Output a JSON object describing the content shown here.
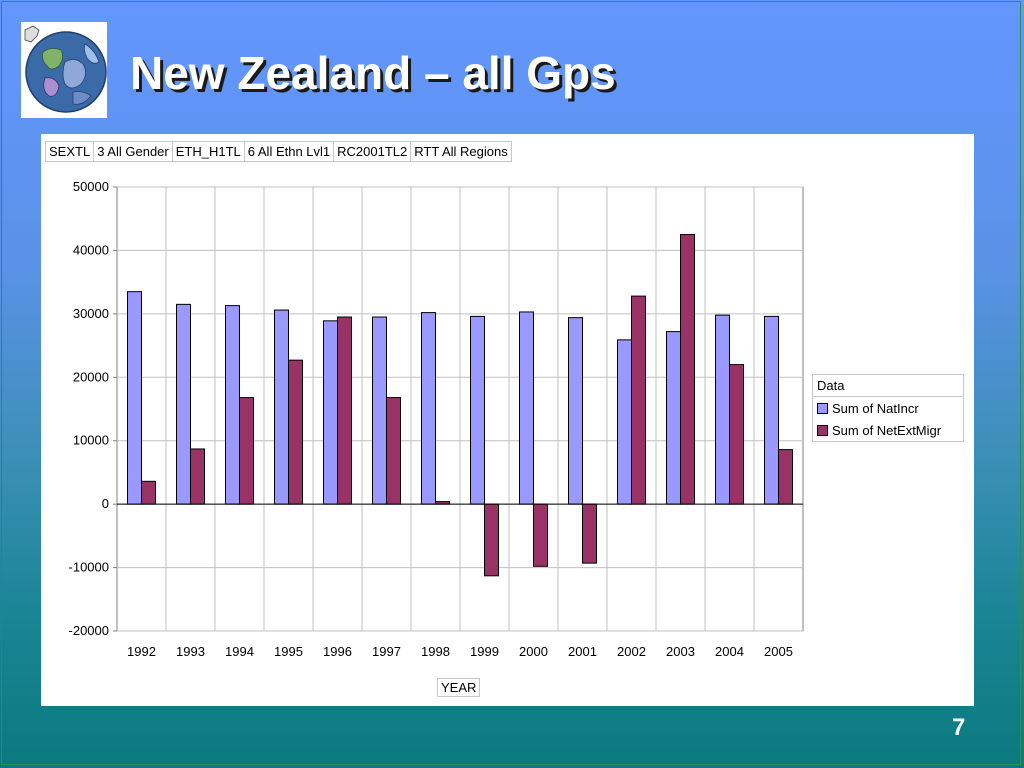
{
  "slide": {
    "title": "New Zealand – all Gps",
    "page_number": "7"
  },
  "filters": [
    "SEXTL",
    "3 All Gender",
    "ETH_H1TL",
    "6 All Ethn Lvl1",
    "RC2001TL2",
    "RTT All Regions"
  ],
  "legend": {
    "title": "Data"
  },
  "chart_data": {
    "type": "bar",
    "title": "",
    "xlabel": "YEAR",
    "ylabel": "",
    "ylim": [
      -20000,
      50000
    ],
    "yticks": [
      -20000,
      -10000,
      0,
      10000,
      20000,
      30000,
      40000,
      50000
    ],
    "grid": true,
    "legend_position": "right",
    "categories": [
      "1992",
      "1993",
      "1994",
      "1995",
      "1996",
      "1997",
      "1998",
      "1999",
      "2000",
      "2001",
      "2002",
      "2003",
      "2004",
      "2005"
    ],
    "series": [
      {
        "name": "Sum of NatIncr",
        "color": "#9999ff",
        "values": [
          33500,
          31500,
          31300,
          30600,
          28900,
          29500,
          30200,
          29600,
          30300,
          29400,
          25900,
          27200,
          29800,
          29600
        ]
      },
      {
        "name": "Sum of NetExtMigr",
        "color": "#993366",
        "values": [
          3600,
          8700,
          16800,
          22700,
          29500,
          16800,
          400,
          -11300,
          -9800,
          -9300,
          32800,
          42500,
          22000,
          8600
        ]
      }
    ]
  }
}
